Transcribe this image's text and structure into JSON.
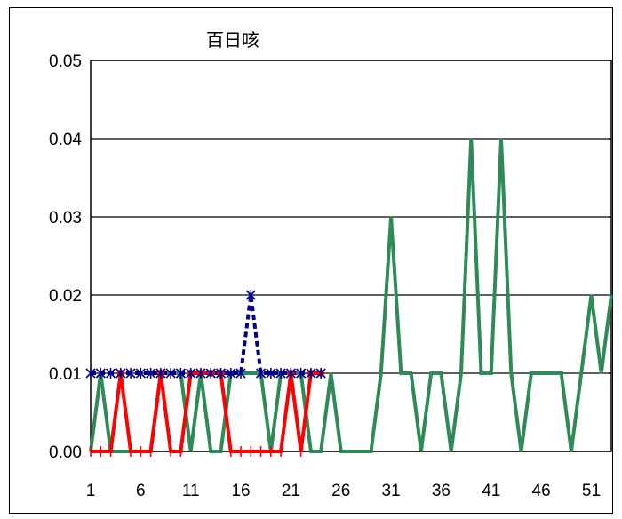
{
  "chart_data": {
    "type": "line",
    "title": "百日咳",
    "xlabel": "",
    "ylabel": "",
    "ylim": [
      0,
      0.05
    ],
    "xlim": [
      1,
      53
    ],
    "yticks": [
      "0.00",
      "0.01",
      "0.02",
      "0.03",
      "0.04",
      "0.05"
    ],
    "xticks": [
      1,
      6,
      11,
      16,
      21,
      26,
      31,
      36,
      41,
      46,
      51
    ],
    "grid": "horizontal",
    "legend": "none",
    "series": [
      {
        "color": "#2e8b57",
        "style": "solid",
        "marker": "none",
        "x": [
          1,
          2,
          3,
          4,
          5,
          6,
          7,
          8,
          9,
          10,
          11,
          12,
          13,
          14,
          15,
          16,
          17,
          18,
          19,
          20,
          21,
          22,
          23,
          24,
          25,
          26,
          27,
          28,
          29,
          30,
          31,
          32,
          33,
          34,
          35,
          36,
          37,
          38,
          39,
          40,
          41,
          42,
          43,
          44,
          45,
          46,
          47,
          48,
          49,
          50,
          51,
          52,
          53
        ],
        "values": [
          0,
          0.01,
          0,
          0,
          0,
          0,
          0,
          0.01,
          0.01,
          0.01,
          0,
          0.01,
          0,
          0,
          0.01,
          0.01,
          0.01,
          0.01,
          0,
          0.01,
          0.01,
          0.01,
          0,
          0,
          0.01,
          0,
          0,
          0,
          0,
          0.01,
          0.03,
          0.01,
          0.01,
          0,
          0.01,
          0.01,
          0,
          0.01,
          0.04,
          0.01,
          0.01,
          0.04,
          0.01,
          0,
          0.01,
          0.01,
          0.01,
          0.01,
          0,
          0.01,
          0.02,
          0.01,
          0.02
        ]
      },
      {
        "color": "#ff0000",
        "style": "solid",
        "marker": "plus-diamond",
        "x": [
          1,
          2,
          3,
          4,
          5,
          6,
          7,
          8,
          9,
          10,
          11,
          12,
          13,
          14,
          15,
          16,
          17,
          18,
          19,
          20,
          21,
          22,
          23,
          24
        ],
        "values": [
          0,
          0,
          0,
          0.01,
          0,
          0,
          0,
          0.01,
          0,
          0,
          0.01,
          0.01,
          0.01,
          0.01,
          0,
          0,
          0,
          0,
          0,
          0,
          0.01,
          0,
          0.01,
          0.01
        ]
      },
      {
        "color": "#00008b",
        "style": "dashed",
        "marker": "asterisk",
        "x": [
          1,
          2,
          3,
          4,
          5,
          6,
          7,
          8,
          9,
          10,
          11,
          12,
          13,
          14,
          15,
          16,
          17,
          18,
          19,
          20,
          21,
          22,
          23,
          24
        ],
        "values": [
          0.01,
          0.01,
          0.01,
          0.01,
          0.01,
          0.01,
          0.01,
          0.01,
          0.01,
          0.01,
          0.01,
          0.01,
          0.01,
          0.01,
          0.01,
          0.01,
          0.02,
          0.01,
          0.01,
          0.01,
          0.01,
          0.01,
          0.01,
          0.01
        ]
      }
    ]
  }
}
